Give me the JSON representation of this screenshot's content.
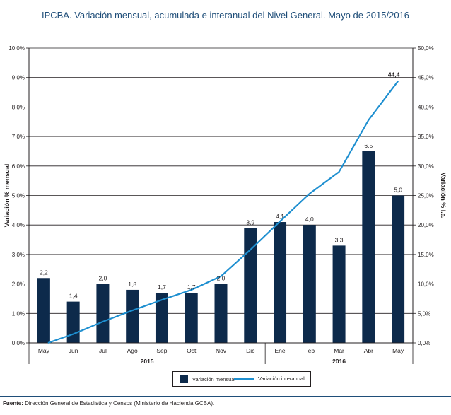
{
  "title": "IPCBA. Variación mensual, acumulada e interanual del Nivel General. Mayo de 2015/2016",
  "footer": {
    "label": "Fuente:",
    "text": " Dirección General de Estadística y Censos (Ministerio de Hacienda GCBA)."
  },
  "colors": {
    "bar": "#0d2a4b",
    "line": "#1e8fd0"
  },
  "chart_data": {
    "type": "bar",
    "categories": [
      "May",
      "Jun",
      "Jul",
      "Ago",
      "Sep",
      "Oct",
      "Nov",
      "Dic",
      "Ene",
      "Feb",
      "Mar",
      "Abr",
      "May"
    ],
    "years": [
      {
        "label": "2015",
        "from_index": 0,
        "to_index": 7
      },
      {
        "label": "2016",
        "from_index": 8,
        "to_index": 12
      }
    ],
    "series": [
      {
        "name": "Variación mensual",
        "type": "bar",
        "axis": "left",
        "values": [
          2.2,
          1.4,
          2.0,
          1.8,
          1.7,
          1.7,
          2.0,
          3.9,
          4.1,
          4.0,
          3.3,
          6.5,
          5.0
        ],
        "labels": [
          "2,2",
          "1,4",
          "2,0",
          "1,8",
          "1,7",
          "1,7",
          "2,0",
          "3,9",
          "4,1",
          "4,0",
          "3,3",
          "6,5",
          "5,0"
        ]
      },
      {
        "name": "Variación interanual",
        "type": "line",
        "axis": "right",
        "values": [
          null,
          1.5,
          3.6,
          5.5,
          7.3,
          9.0,
          11.3,
          15.8,
          20.6,
          25.3,
          29.0,
          37.8,
          44.4
        ],
        "labels": [
          "",
          "",
          "",
          "",
          "",
          "",
          "",
          "",
          "",
          "",
          "",
          "",
          "44,4"
        ]
      }
    ],
    "y_left": {
      "label": "Variación % mensual",
      "range": [
        0,
        10
      ],
      "ticks": [
        0,
        1,
        2,
        3,
        4,
        5,
        6,
        7,
        8,
        9,
        10
      ],
      "tick_labels": [
        "0,0%",
        "1,0%",
        "2,0%",
        "3,0%",
        "4,0%",
        "5,0%",
        "6,0%",
        "7,0%",
        "8,0%",
        "9,0%",
        "10,0%"
      ]
    },
    "y_right": {
      "label": "Variación % i.a.",
      "range": [
        0,
        50
      ],
      "ticks": [
        0,
        5,
        10,
        15,
        20,
        25,
        30,
        35,
        40,
        45,
        50
      ],
      "tick_labels": [
        "0,0%",
        "5,0%",
        "10,0%",
        "15,0%",
        "20,0%",
        "25,0%",
        "30,0%",
        "35,0%",
        "40,0%",
        "45,0%",
        "50,0%"
      ]
    },
    "grid": true,
    "legend": "bottom-center"
  }
}
